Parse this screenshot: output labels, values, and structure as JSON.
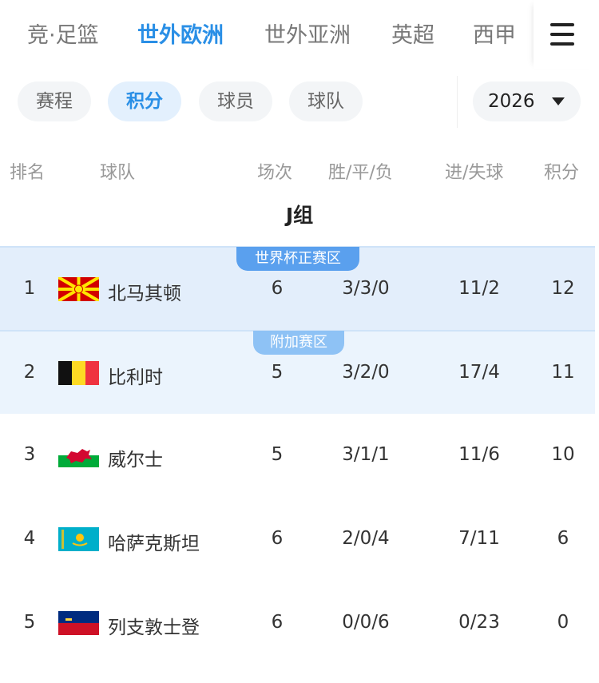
{
  "nav": {
    "tabs": [
      "竞·足篮",
      "世外欧洲",
      "世外亚洲",
      "英超",
      "西甲"
    ],
    "active": 1,
    "menu_icon": "hamburger-icon"
  },
  "filters": {
    "pills": [
      "赛程",
      "积分",
      "球员",
      "球队"
    ],
    "active": 1,
    "year": "2026"
  },
  "table": {
    "headers": {
      "rank": "排名",
      "team": "球队",
      "played": "场次",
      "wdl": "胜/平/负",
      "goals": "进/失球",
      "points": "积分"
    },
    "group": "J组",
    "zones": {
      "direct": "世界杯正赛区",
      "playoff": "附加赛区"
    },
    "colors": {
      "direct_row": "#e3eefb",
      "playoff_row": "#ebf4fd",
      "direct_badge": "#5aa0ee",
      "playoff_badge": "#8ec2f5",
      "accent": "#2a8fe6"
    },
    "rows": [
      {
        "rank": "1",
        "team": "北马其顿",
        "flag": "north-macedonia",
        "played": "6",
        "wdl": "3/3/0",
        "goals": "11/2",
        "points": "12"
      },
      {
        "rank": "2",
        "team": "比利时",
        "flag": "belgium",
        "played": "5",
        "wdl": "3/2/0",
        "goals": "17/4",
        "points": "11"
      },
      {
        "rank": "3",
        "team": "威尔士",
        "flag": "wales",
        "played": "5",
        "wdl": "3/1/1",
        "goals": "11/6",
        "points": "10"
      },
      {
        "rank": "4",
        "team": "哈萨克斯坦",
        "flag": "kazakhstan",
        "played": "6",
        "wdl": "2/0/4",
        "goals": "7/11",
        "points": "6"
      },
      {
        "rank": "5",
        "team": "列支敦士登",
        "flag": "liechtenstein",
        "played": "6",
        "wdl": "0/0/6",
        "goals": "0/23",
        "points": "0"
      }
    ]
  }
}
